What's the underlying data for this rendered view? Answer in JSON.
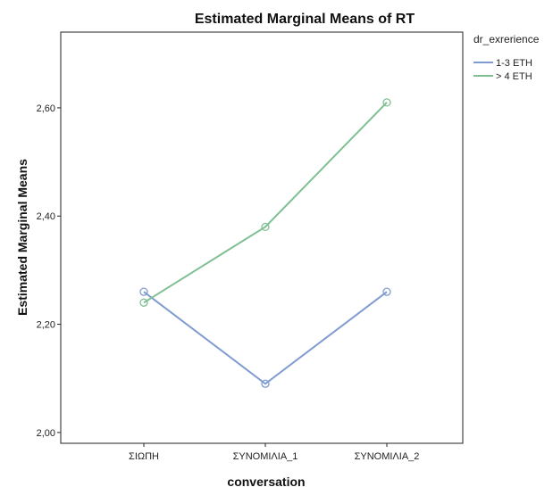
{
  "chart_data": {
    "type": "line",
    "title": "Estimated Marginal Means of RT",
    "xlabel": "conversation",
    "ylabel": "Estimated Marginal Means",
    "categories": [
      "ΣΙΩΠΗ",
      "ΣΥΝΟΜΙΛΙΑ_1",
      "ΣΥΝΟΜΙΛΙΑ_2"
    ],
    "yticks": [
      "2,00",
      "2,20",
      "2,40",
      "2,60"
    ],
    "ylim": [
      1.98,
      2.74
    ],
    "legend_title": "dr_exrerience",
    "legend_position": "right",
    "grid": false,
    "series": [
      {
        "name": "1-3 ΕΤΗ",
        "values": [
          2.26,
          2.09,
          2.26
        ],
        "color": "#7f9bd0"
      },
      {
        "name": "> 4 ΕΤΗ",
        "values": [
          2.24,
          2.38,
          2.61
        ],
        "color": "#7fc092"
      }
    ]
  }
}
